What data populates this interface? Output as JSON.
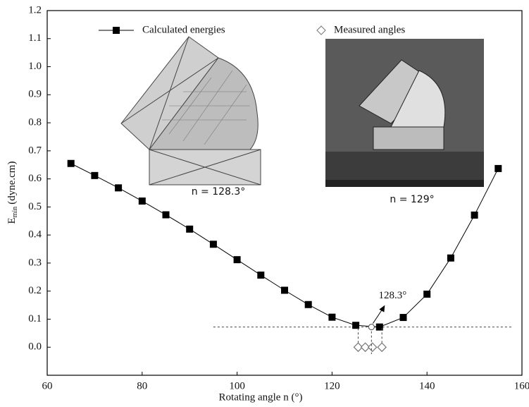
{
  "chart_data": {
    "type": "line",
    "x_label": "Rotating angle n (°)",
    "y_label": "E",
    "y_label_sub": "min",
    "y_label_unit": "(dyne.cm)",
    "xlim": [
      60,
      160
    ],
    "ylim": [
      -0.1,
      1.2
    ],
    "xticks": [
      60,
      80,
      100,
      120,
      140,
      160
    ],
    "yticks": [
      {
        "value": 0,
        "label": "0.0"
      },
      0.1,
      0.2,
      0.3,
      0.4,
      0.5,
      0.6,
      0.7,
      0.8,
      0.9,
      {
        "value": 1,
        "label": "1.0"
      },
      1.1,
      1.2
    ],
    "series": [
      {
        "name": "Calculated energies",
        "color": "#000000",
        "marker": "square",
        "x": [
          65,
          70,
          75,
          80,
          85,
          90,
          95,
          100,
          105,
          110,
          115,
          120,
          125,
          130,
          135,
          140,
          145,
          150,
          155
        ],
        "values": [
          0.655,
          0.612,
          0.568,
          0.521,
          0.472,
          0.421,
          0.367,
          0.312,
          0.257,
          0.203,
          0.152,
          0.107,
          0.078,
          0.072,
          0.106,
          0.189,
          0.318,
          0.471,
          0.637
        ]
      },
      {
        "name": "Measured angles",
        "color": "#777777",
        "marker": "diamond",
        "x": [
          125.5,
          127,
          128.5,
          130.5
        ],
        "values": [
          0,
          0,
          0,
          0
        ]
      }
    ],
    "minimum": {
      "x": 128.3,
      "value": 0.072,
      "label": "128.3°"
    },
    "inset_labels": [
      "n = 128.3°",
      "n = 129°"
    ]
  }
}
